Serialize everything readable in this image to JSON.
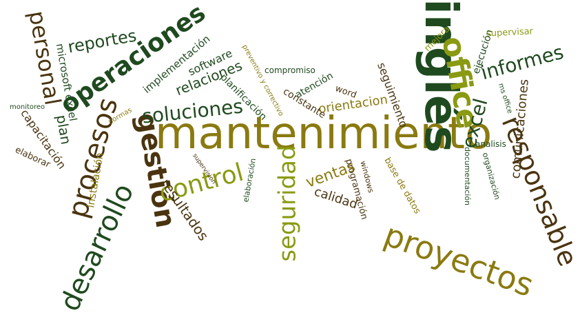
{
  "palette": {
    "dark_green": "#1f4a1f",
    "dark_brown": "#4a3410",
    "olive_gold": "#8a7a10",
    "yellow_green": "#8a9a12",
    "mid_green": "#2f6a1e"
  },
  "words": [
    {
      "text": "mantenimiento",
      "weight": 100
    },
    {
      "text": "inglés",
      "weight": 68
    },
    {
      "text": "operaciones",
      "weight": 52
    },
    {
      "text": "proyectos",
      "weight": 48
    },
    {
      "text": "responsable",
      "weight": 44
    },
    {
      "text": "procesos",
      "weight": 42
    },
    {
      "text": "desarrollo",
      "weight": 42
    },
    {
      "text": "gestión",
      "weight": 40
    },
    {
      "text": "office",
      "weight": 40
    },
    {
      "text": "control",
      "weight": 38
    },
    {
      "text": "seguridad",
      "weight": 36
    },
    {
      "text": "personal",
      "weight": 34
    },
    {
      "text": "soluciones",
      "weight": 30
    },
    {
      "text": "informes",
      "weight": 30
    },
    {
      "text": "excel",
      "weight": 28
    },
    {
      "text": "reportes",
      "weight": 26
    },
    {
      "text": "ventas",
      "weight": 24
    },
    {
      "text": "relaciones",
      "weight": 22
    },
    {
      "text": "resultados",
      "weight": 22
    },
    {
      "text": "comunicaciones",
      "weight": 20
    },
    {
      "text": "calidad",
      "weight": 20
    },
    {
      "text": "plan",
      "weight": 20
    },
    {
      "text": "orientacion",
      "weight": 18
    },
    {
      "text": "seguimiento",
      "weight": 18
    },
    {
      "text": "software",
      "weight": 18
    },
    {
      "text": "capacitación",
      "weight": 18
    },
    {
      "text": "implementación",
      "weight": 16
    },
    {
      "text": "microsoft excel",
      "weight": 16
    },
    {
      "text": "instalación",
      "weight": 16
    },
    {
      "text": "planificación",
      "weight": 16
    },
    {
      "text": "constante",
      "weight": 16
    },
    {
      "text": "atención",
      "weight": 16
    },
    {
      "text": "ejecución",
      "weight": 16
    },
    {
      "text": "supervisar",
      "weight": 14
    },
    {
      "text": "mejora",
      "weight": 14
    },
    {
      "text": "word",
      "weight": 14
    },
    {
      "text": "programación",
      "weight": 14
    },
    {
      "text": "base de datos",
      "weight": 14
    },
    {
      "text": "elaborar",
      "weight": 14
    },
    {
      "text": "compromiso",
      "weight": 13
    },
    {
      "text": "analisis",
      "weight": 13
    },
    {
      "text": "organización",
      "weight": 12
    },
    {
      "text": "documentación",
      "weight": 12
    },
    {
      "text": "windows",
      "weight": 12
    },
    {
      "text": "elaboración",
      "weight": 12
    },
    {
      "text": "preventivo y correctivo",
      "weight": 11
    },
    {
      "text": "ms office",
      "weight": 11
    },
    {
      "text": "normas",
      "weight": 10
    },
    {
      "text": "supervision",
      "weight": 10
    },
    {
      "text": "monitoreo",
      "weight": 10
    }
  ]
}
